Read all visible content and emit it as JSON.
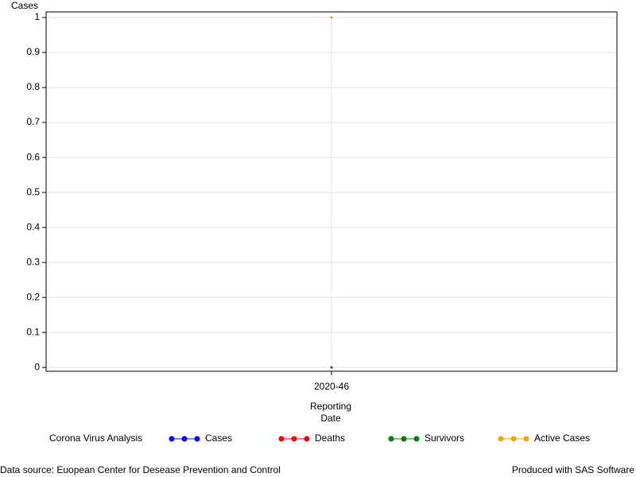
{
  "chart_data": {
    "type": "line",
    "y_label": "Cases",
    "x_label": "Reporting Date",
    "categories": [
      "2020-46"
    ],
    "series": [
      {
        "name": "Cases",
        "color": "#0000ff",
        "values": [
          1
        ]
      },
      {
        "name": "Deaths",
        "color": "#ff0000",
        "values": [
          0
        ]
      },
      {
        "name": "Survivors",
        "color": "#008000",
        "values": [
          0
        ]
      },
      {
        "name": "Active Cases",
        "color": "#ffa500",
        "values": [
          1
        ]
      }
    ],
    "ylim": [
      -0.011,
      1.016
    ],
    "yticks": [
      0,
      0.1,
      0.2,
      0.3,
      0.4,
      0.5,
      0.6,
      0.7,
      0.8,
      0.9,
      1
    ],
    "grid": true,
    "legend_title": "Corona Virus Analysis",
    "footnote_left": "Data source: Euopean Center for Desease Prevention and Control",
    "footnote_right": "Produced with SAS Software"
  }
}
